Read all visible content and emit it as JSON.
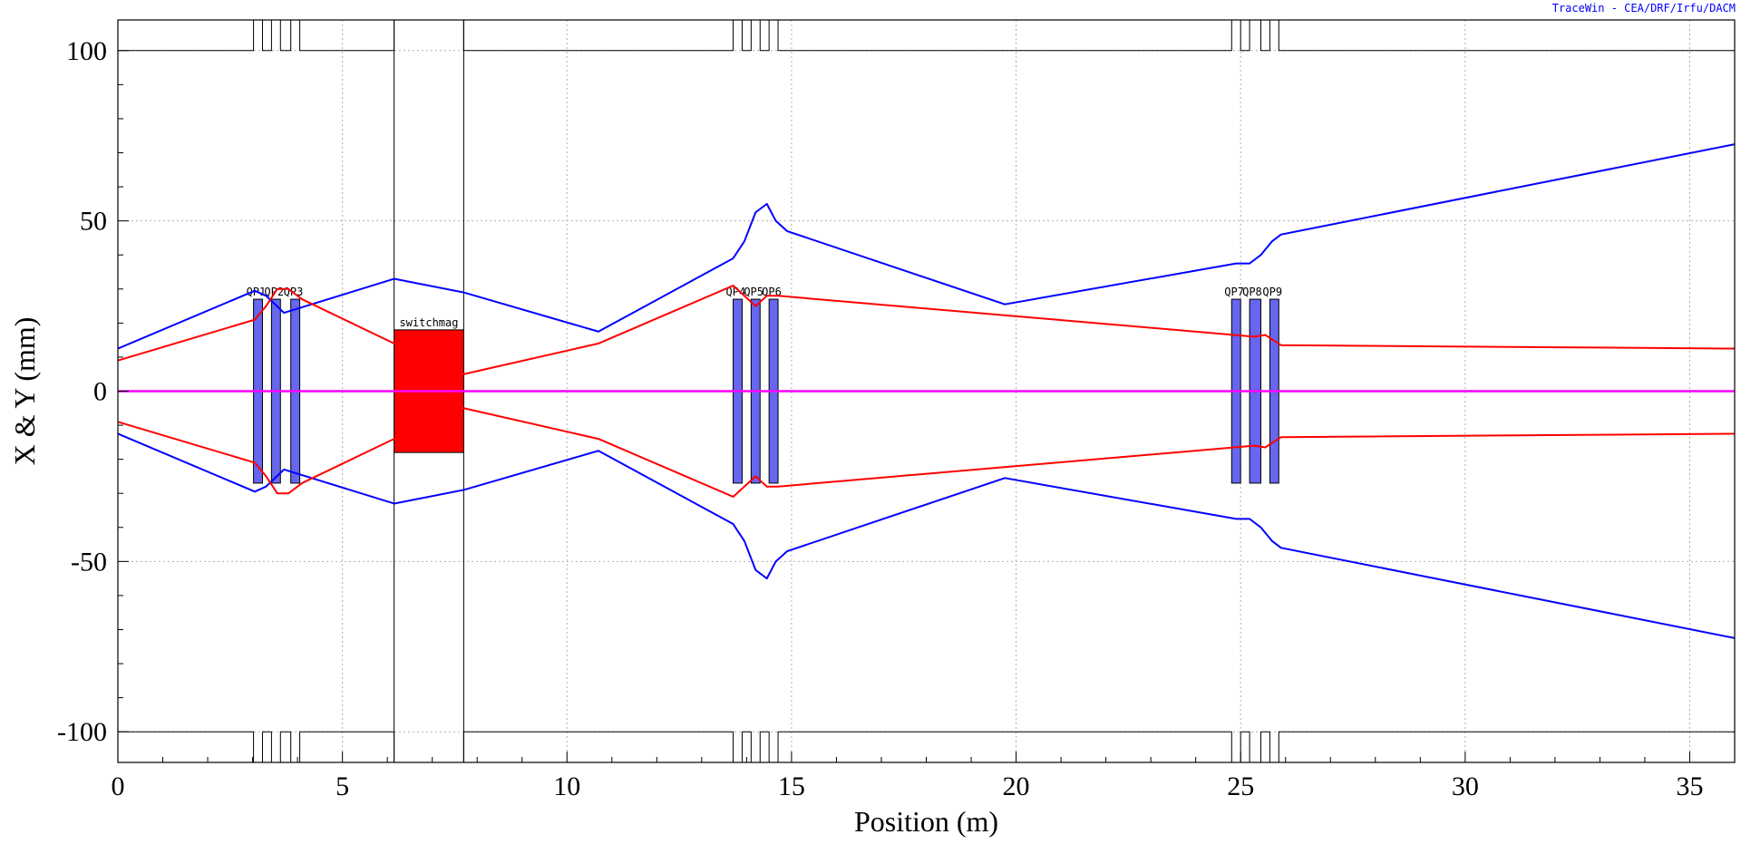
{
  "credit": "TraceWin - CEA/DRF/Irfu/DACM",
  "chart_data": {
    "type": "line",
    "xlabel": "Position (m)",
    "ylabel": "X & Y (mm)",
    "xlim": [
      0,
      36
    ],
    "ylim": [
      -109,
      109
    ],
    "x_ticks": [
      0,
      5,
      10,
      15,
      20,
      25,
      30,
      35
    ],
    "y_ticks": [
      100,
      50,
      0,
      -50,
      -100
    ],
    "grid": true,
    "colors": {
      "x_envelope": "#0000ff",
      "y_envelope": "#ff0000",
      "centroid": "#ff00ff",
      "quad": "#6666ee",
      "dipole": "#ff0000",
      "aperture": "#000000"
    },
    "series": [
      {
        "key": "x_upper",
        "color": "#0000ff",
        "x": [
          0,
          3.05,
          3.3,
          3.7,
          6.15,
          7.7,
          10.7,
          13.7,
          13.95,
          14.2,
          14.45,
          14.65,
          14.9,
          19.75,
          24.9,
          25.2,
          25.45,
          25.7,
          25.9,
          36
        ],
        "y": [
          12.5,
          29.5,
          28,
          23,
          33,
          29,
          17.5,
          39,
          44,
          52.5,
          55,
          50,
          47,
          25.5,
          37.5,
          37.5,
          40,
          44,
          46,
          72.5
        ]
      },
      {
        "key": "x_lower",
        "color": "#0000ff",
        "x": [
          0,
          3.05,
          3.3,
          3.7,
          6.15,
          7.7,
          10.7,
          13.7,
          13.95,
          14.2,
          14.45,
          14.65,
          14.9,
          19.75,
          24.9,
          25.2,
          25.45,
          25.7,
          25.9,
          36
        ],
        "y": [
          -12.5,
          -29.5,
          -28,
          -23,
          -33,
          -29,
          -17.5,
          -39,
          -44,
          -52.5,
          -55,
          -50,
          -47,
          -25.5,
          -37.5,
          -37.5,
          -40,
          -44,
          -46,
          -72.5
        ]
      },
      {
        "key": "y_upper",
        "color": "#ff0000",
        "x": [
          0,
          3.05,
          3.3,
          3.55,
          3.8,
          4.1,
          6.15,
          7.7,
          10.7,
          13.7,
          14.2,
          14.45,
          14.7,
          25.3,
          25.55,
          25.9,
          36
        ],
        "y": [
          9,
          21,
          25,
          30,
          30,
          27,
          14,
          5,
          14,
          31,
          25,
          28,
          28,
          16,
          16.5,
          13.5,
          12.5
        ]
      },
      {
        "key": "y_lower",
        "color": "#ff0000",
        "x": [
          0,
          3.05,
          3.3,
          3.55,
          3.8,
          4.1,
          6.15,
          7.7,
          10.7,
          13.7,
          14.2,
          14.45,
          14.7,
          25.3,
          25.55,
          25.9,
          36
        ],
        "y": [
          -9,
          -21,
          -25,
          -30,
          -30,
          -27,
          -14,
          -5,
          -14,
          -31,
          -25,
          -28,
          -28,
          -16,
          -16.5,
          -13.5,
          -12.5
        ]
      },
      {
        "key": "centroid",
        "color": "#ff00ff",
        "x": [
          0,
          36
        ],
        "y": [
          0,
          0
        ]
      }
    ],
    "elements": [
      {
        "label": "QP1",
        "type": "quad",
        "x_start": 3.02,
        "x_end": 3.22,
        "half_height": 27
      },
      {
        "label": "QP2",
        "type": "quad",
        "x_start": 3.42,
        "x_end": 3.62,
        "half_height": 27
      },
      {
        "label": "QP3",
        "type": "quad",
        "x_start": 3.85,
        "x_end": 4.05,
        "half_height": 27
      },
      {
        "label": "switchmag",
        "type": "dipole",
        "x_start": 6.15,
        "x_end": 7.7,
        "half_height": 18
      },
      {
        "label": "QP4",
        "type": "quad",
        "x_start": 13.7,
        "x_end": 13.9,
        "half_height": 27
      },
      {
        "label": "QP5",
        "type": "quad",
        "x_start": 14.1,
        "x_end": 14.3,
        "half_height": 27
      },
      {
        "label": "QP6",
        "type": "quad",
        "x_start": 14.5,
        "x_end": 14.7,
        "half_height": 27
      },
      {
        "label": "QP7",
        "type": "quad",
        "x_start": 24.8,
        "x_end": 25.0,
        "half_height": 27
      },
      {
        "label": "QP8",
        "type": "quad",
        "x_start": 25.2,
        "x_end": 25.45,
        "half_height": 27
      },
      {
        "label": "QP9",
        "type": "quad",
        "x_start": 25.65,
        "x_end": 25.85,
        "half_height": 27
      }
    ],
    "aperture": {
      "x": [
        0,
        3.02,
        3.02,
        3.22,
        3.22,
        3.42,
        3.42,
        3.62,
        3.62,
        3.85,
        3.85,
        4.05,
        4.05,
        6.15,
        6.15,
        7.7,
        7.7,
        13.7,
        13.7,
        13.9,
        13.9,
        14.1,
        14.1,
        14.3,
        14.3,
        14.5,
        14.5,
        14.7,
        14.7,
        24.8,
        24.8,
        25.0,
        25.0,
        25.2,
        25.2,
        25.45,
        25.45,
        25.65,
        25.65,
        25.85,
        25.85,
        36
      ],
      "y": [
        100,
        100,
        109,
        109,
        100,
        100,
        109,
        109,
        100,
        100,
        109,
        109,
        100,
        100,
        109,
        109,
        100,
        100,
        109,
        109,
        100,
        100,
        109,
        109,
        100,
        100,
        109,
        109,
        100,
        100,
        109,
        109,
        100,
        100,
        109,
        109,
        100,
        100,
        109,
        109,
        100,
        100
      ],
      "full_height_bounds": [
        6.15,
        7.7
      ]
    }
  }
}
